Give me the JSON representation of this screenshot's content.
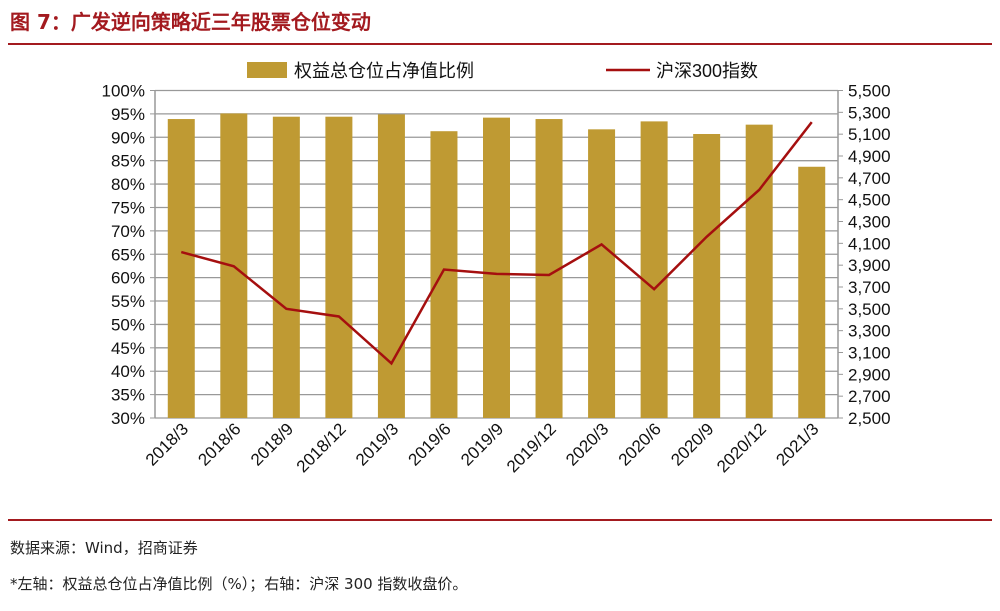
{
  "header": {
    "title": "图 7：广发逆向策略近三年股票仓位变动"
  },
  "footer": {
    "source": "数据来源：Wind，招商证券",
    "note": "*左轴：权益总仓位占净值比例（%）；右轴：沪深 300 指数收盘价。"
  },
  "colors": {
    "bar": "#BF9A33",
    "line": "#A50F0F",
    "accent": "#A31A1F",
    "grid": "#999999"
  },
  "chart_data": {
    "type": "bar+line",
    "categories": [
      "2018/3",
      "2018/6",
      "2018/9",
      "2018/12",
      "2019/3",
      "2019/6",
      "2019/9",
      "2019/12",
      "2020/3",
      "2020/6",
      "2020/9",
      "2020/12",
      "2021/3"
    ],
    "series": [
      {
        "name": "权益总仓位占净值比例",
        "type": "bar",
        "axis": "left",
        "values": [
          93.9,
          95.1,
          94.4,
          94.4,
          94.9,
          91.3,
          94.2,
          93.9,
          91.7,
          93.4,
          90.7,
          92.7,
          83.7
        ]
      },
      {
        "name": "沪深300指数",
        "type": "line",
        "axis": "right",
        "values": [
          4020,
          3890,
          3500,
          3430,
          3000,
          3860,
          3820,
          3810,
          4090,
          3680,
          4160,
          4590,
          5210
        ]
      }
    ],
    "left_axis": {
      "range": [
        30,
        100
      ],
      "ticks": [
        "30%",
        "35%",
        "40%",
        "45%",
        "50%",
        "55%",
        "60%",
        "65%",
        "70%",
        "75%",
        "80%",
        "85%",
        "90%",
        "95%",
        "100%"
      ]
    },
    "right_axis": {
      "range": [
        2500,
        5500
      ],
      "ticks": [
        "2,500",
        "2,700",
        "2,900",
        "3,100",
        "3,300",
        "3,500",
        "3,700",
        "3,900",
        "4,100",
        "4,300",
        "4,500",
        "4,700",
        "4,900",
        "5,100",
        "5,300",
        "5,500"
      ]
    },
    "grid": true,
    "legend": "top"
  }
}
